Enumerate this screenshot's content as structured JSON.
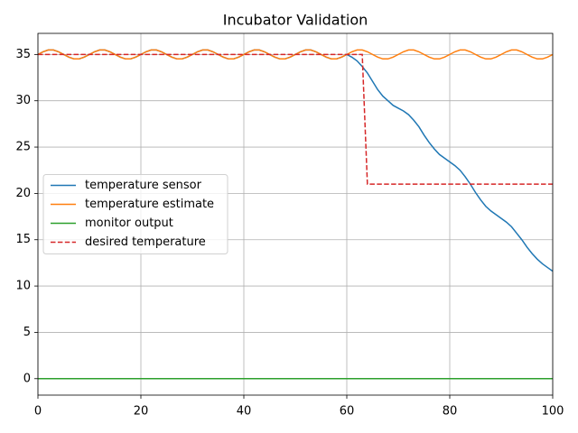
{
  "chart_data": {
    "type": "line",
    "title": "Incubator Validation",
    "x": [
      0,
      1,
      2,
      3,
      4,
      5,
      6,
      7,
      8,
      9,
      10,
      11,
      12,
      13,
      14,
      15,
      16,
      17,
      18,
      19,
      20,
      21,
      22,
      23,
      24,
      25,
      26,
      27,
      28,
      29,
      30,
      31,
      32,
      33,
      34,
      35,
      36,
      37,
      38,
      39,
      40,
      41,
      42,
      43,
      44,
      45,
      46,
      47,
      48,
      49,
      50,
      51,
      52,
      53,
      54,
      55,
      56,
      57,
      58,
      59,
      60,
      61,
      62,
      63,
      64,
      65,
      66,
      67,
      68,
      69,
      70,
      71,
      72,
      73,
      74,
      75,
      76,
      77,
      78,
      79,
      80,
      81,
      82,
      83,
      84,
      85,
      86,
      87,
      88,
      89,
      90,
      91,
      92,
      93,
      94,
      95,
      96,
      97,
      98,
      99,
      100
    ],
    "series": [
      {
        "name": "temperature sensor",
        "color": "#1f77b4",
        "dash": false,
        "values": [
          35,
          35.29,
          35.48,
          35.48,
          35.29,
          35,
          34.71,
          34.52,
          34.52,
          34.71,
          35,
          35.29,
          35.48,
          35.48,
          35.29,
          35,
          34.71,
          34.52,
          34.52,
          34.71,
          35,
          35.29,
          35.48,
          35.48,
          35.29,
          35,
          34.71,
          34.52,
          34.52,
          34.71,
          35,
          35.29,
          35.48,
          35.48,
          35.29,
          35,
          34.71,
          34.52,
          34.52,
          34.71,
          35,
          35.29,
          35.48,
          35.48,
          35.29,
          35,
          34.71,
          34.52,
          34.52,
          34.71,
          35,
          35.29,
          35.48,
          35.48,
          35.29,
          35,
          34.71,
          34.52,
          34.52,
          34.71,
          35,
          34.7,
          34.3,
          33.7,
          33.0,
          32.1,
          31.2,
          30.5,
          30.0,
          29.5,
          29.2,
          28.9,
          28.5,
          27.9,
          27.2,
          26.3,
          25.5,
          24.8,
          24.2,
          23.8,
          23.4,
          23.0,
          22.5,
          21.8,
          21.0,
          20.1,
          19.3,
          18.6,
          18.1,
          17.7,
          17.3,
          16.9,
          16.4,
          15.7,
          15.0,
          14.2,
          13.5,
          12.9,
          12.4,
          12.0,
          11.6
        ]
      },
      {
        "name": "temperature estimate",
        "color": "#ff7f0e",
        "dash": false,
        "values": [
          35,
          35.29,
          35.48,
          35.48,
          35.29,
          35,
          34.71,
          34.52,
          34.52,
          34.71,
          35,
          35.29,
          35.48,
          35.48,
          35.29,
          35,
          34.71,
          34.52,
          34.52,
          34.71,
          35,
          35.29,
          35.48,
          35.48,
          35.29,
          35,
          34.71,
          34.52,
          34.52,
          34.71,
          35,
          35.29,
          35.48,
          35.48,
          35.29,
          35,
          34.71,
          34.52,
          34.52,
          34.71,
          35,
          35.29,
          35.48,
          35.48,
          35.29,
          35,
          34.71,
          34.52,
          34.52,
          34.71,
          35,
          35.29,
          35.48,
          35.48,
          35.29,
          35,
          34.71,
          34.52,
          34.52,
          34.71,
          35,
          35.29,
          35.48,
          35.48,
          35.29,
          35,
          34.71,
          34.52,
          34.52,
          34.71,
          35,
          35.29,
          35.48,
          35.48,
          35.29,
          35,
          34.71,
          34.52,
          34.52,
          34.71,
          35,
          35.29,
          35.48,
          35.48,
          35.29,
          35,
          34.71,
          34.52,
          34.52,
          34.71,
          35,
          35.29,
          35.48,
          35.48,
          35.29,
          35,
          34.71,
          34.52,
          34.52,
          34.71,
          35
        ]
      },
      {
        "name": "monitor output",
        "color": "#2ca02c",
        "dash": false,
        "values": [
          0,
          0,
          0,
          0,
          0,
          0,
          0,
          0,
          0,
          0,
          0,
          0,
          0,
          0,
          0,
          0,
          0,
          0,
          0,
          0,
          0,
          0,
          0,
          0,
          0,
          0,
          0,
          0,
          0,
          0,
          0,
          0,
          0,
          0,
          0,
          0,
          0,
          0,
          0,
          0,
          0,
          0,
          0,
          0,
          0,
          0,
          0,
          0,
          0,
          0,
          0,
          0,
          0,
          0,
          0,
          0,
          0,
          0,
          0,
          0,
          0,
          0,
          0,
          0,
          0,
          0,
          0,
          0,
          0,
          0,
          0,
          0,
          0,
          0,
          0,
          0,
          0,
          0,
          0,
          0,
          0,
          0,
          0,
          0,
          0,
          0,
          0,
          0,
          0,
          0,
          0,
          0,
          0,
          0,
          0,
          0,
          0,
          0,
          0,
          0,
          0
        ]
      },
      {
        "name": "desired temperature",
        "color": "#d62728",
        "dash": true,
        "values": [
          35,
          35,
          35,
          35,
          35,
          35,
          35,
          35,
          35,
          35,
          35,
          35,
          35,
          35,
          35,
          35,
          35,
          35,
          35,
          35,
          35,
          35,
          35,
          35,
          35,
          35,
          35,
          35,
          35,
          35,
          35,
          35,
          35,
          35,
          35,
          35,
          35,
          35,
          35,
          35,
          35,
          35,
          35,
          35,
          35,
          35,
          35,
          35,
          35,
          35,
          35,
          35,
          35,
          35,
          35,
          35,
          35,
          35,
          35,
          35,
          35,
          35,
          35,
          35,
          21,
          21,
          21,
          21,
          21,
          21,
          21,
          21,
          21,
          21,
          21,
          21,
          21,
          21,
          21,
          21,
          21,
          21,
          21,
          21,
          21,
          21,
          21,
          21,
          21,
          21,
          21,
          21,
          21,
          21,
          21,
          21,
          21,
          21,
          21,
          21,
          21
        ]
      }
    ],
    "xlim": [
      0,
      100
    ],
    "xticks": [
      0,
      20,
      40,
      60,
      80,
      100
    ],
    "ylim": [
      -1.775,
      37.275
    ],
    "yticks": [
      0,
      5,
      10,
      15,
      20,
      25,
      30,
      35
    ],
    "grid": true,
    "legend": "center left"
  }
}
